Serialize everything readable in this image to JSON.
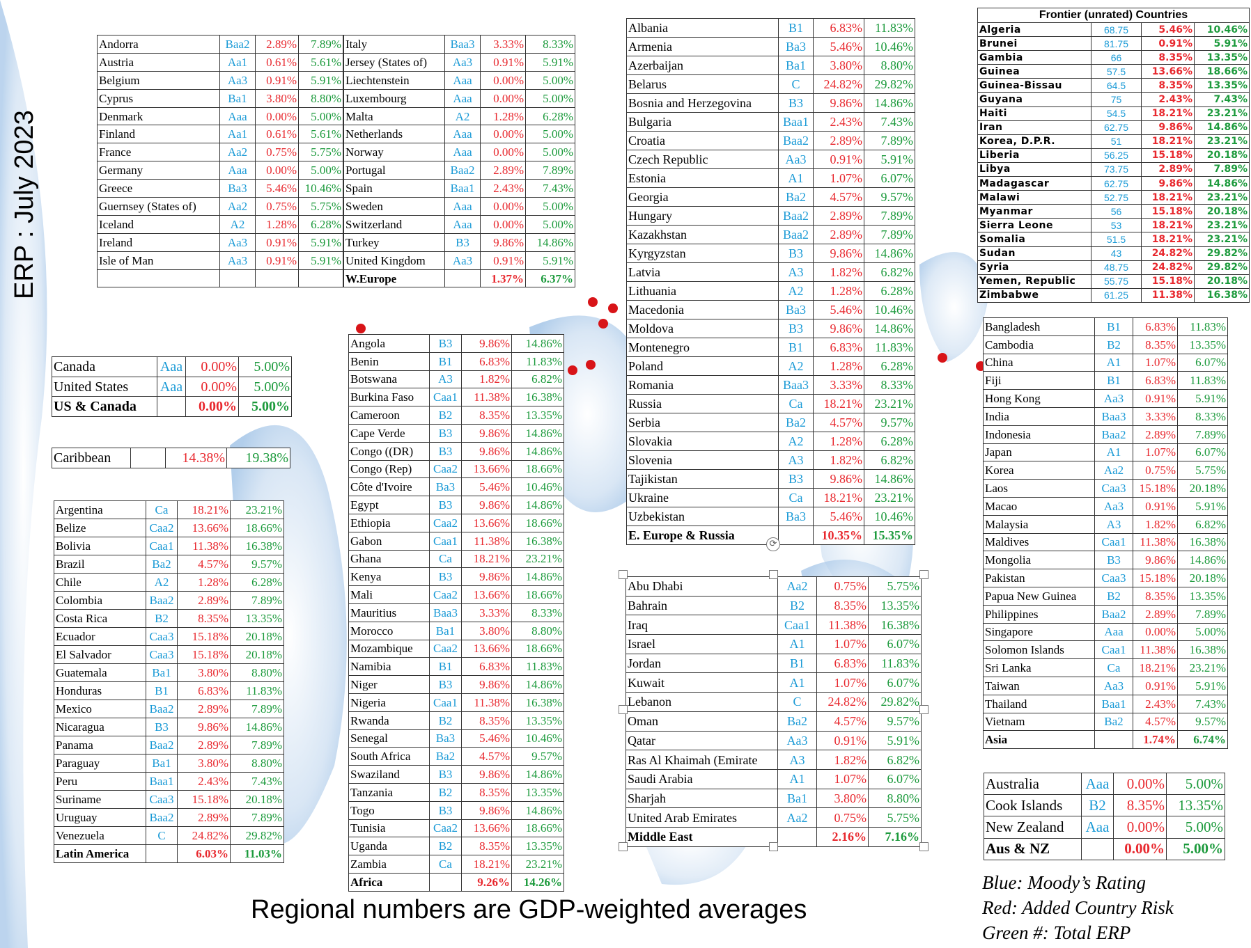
{
  "title": "ERP : July 2023",
  "footer": "Regional numbers are GDP-weighted averages",
  "legend": [
    "Blue: Moody’s Rating",
    "Red: Added Country Risk",
    "Green #: Total ERP"
  ],
  "colors": {
    "rating": "#1a9ad6",
    "crp": "#e8282e",
    "erp": "#1c9a3c",
    "ocean": "#bcd6ee",
    "marker": "#d81418"
  },
  "tables": [
    {
      "id": "weurope-left",
      "rows": [
        [
          "Andorra",
          "Baa2",
          "2.89%",
          "7.89%"
        ],
        [
          "Austria",
          "Aa1",
          "0.61%",
          "5.61%"
        ],
        [
          "Belgium",
          "Aa3",
          "0.91%",
          "5.91%"
        ],
        [
          "Cyprus",
          "Ba1",
          "3.80%",
          "8.80%"
        ],
        [
          "Denmark",
          "Aaa",
          "0.00%",
          "5.00%"
        ],
        [
          "Finland",
          "Aa1",
          "0.61%",
          "5.61%"
        ],
        [
          "France",
          "Aa2",
          "0.75%",
          "5.75%"
        ],
        [
          "Germany",
          "Aaa",
          "0.00%",
          "5.00%"
        ],
        [
          "Greece",
          "Ba3",
          "5.46%",
          "10.46%"
        ],
        [
          "Guernsey (States of)",
          "Aa2",
          "0.75%",
          "5.75%"
        ],
        [
          "Iceland",
          "A2",
          "1.28%",
          "6.28%"
        ],
        [
          "Ireland",
          "Aa3",
          "0.91%",
          "5.91%"
        ],
        [
          "Isle of Man",
          "Aa3",
          "0.91%",
          "5.91%"
        ],
        [
          "",
          "",
          "",
          ""
        ]
      ]
    },
    {
      "id": "weurope-right",
      "rows": [
        [
          "Italy",
          "Baa3",
          "3.33%",
          "8.33%"
        ],
        [
          "Jersey (States of)",
          "Aa3",
          "0.91%",
          "5.91%"
        ],
        [
          "Liechtenstein",
          "Aaa",
          "0.00%",
          "5.00%"
        ],
        [
          "Luxembourg",
          "Aaa",
          "0.00%",
          "5.00%"
        ],
        [
          "Malta",
          "A2",
          "1.28%",
          "6.28%"
        ],
        [
          "Netherlands",
          "Aaa",
          "0.00%",
          "5.00%"
        ],
        [
          "Norway",
          "Aaa",
          "0.00%",
          "5.00%"
        ],
        [
          "Portugal",
          "Baa2",
          "2.89%",
          "7.89%"
        ],
        [
          "Spain",
          "Baa1",
          "2.43%",
          "7.43%"
        ],
        [
          "Sweden",
          "Aaa",
          "0.00%",
          "5.00%"
        ],
        [
          "Switzerland",
          "Aaa",
          "0.00%",
          "5.00%"
        ],
        [
          "Turkey",
          "B3",
          "9.86%",
          "14.86%"
        ],
        [
          "United Kingdom",
          "Aa3",
          "0.91%",
          "5.91%"
        ]
      ],
      "total": [
        "W.Europe",
        "",
        "1.37%",
        "6.37%"
      ]
    },
    {
      "id": "us-canada",
      "rows": [
        [
          "Canada",
          "Aaa",
          "0.00%",
          "5.00%"
        ],
        [
          "United States",
          "Aaa",
          "0.00%",
          "5.00%"
        ]
      ],
      "total": [
        "US & Canada",
        "",
        "0.00%",
        "5.00%"
      ]
    },
    {
      "id": "caribbean",
      "rows": [
        [
          "Caribbean",
          "",
          "14.38%",
          "19.38%"
        ]
      ]
    },
    {
      "id": "latin-america",
      "rows": [
        [
          "Argentina",
          "Ca",
          "18.21%",
          "23.21%"
        ],
        [
          "Belize",
          "Caa2",
          "13.66%",
          "18.66%"
        ],
        [
          "Bolivia",
          "Caa1",
          "11.38%",
          "16.38%"
        ],
        [
          "Brazil",
          "Ba2",
          "4.57%",
          "9.57%"
        ],
        [
          "Chile",
          "A2",
          "1.28%",
          "6.28%"
        ],
        [
          "Colombia",
          "Baa2",
          "2.89%",
          "7.89%"
        ],
        [
          "Costa Rica",
          "B2",
          "8.35%",
          "13.35%"
        ],
        [
          "Ecuador",
          "Caa3",
          "15.18%",
          "20.18%"
        ],
        [
          "El Salvador",
          "Caa3",
          "15.18%",
          "20.18%"
        ],
        [
          "Guatemala",
          "Ba1",
          "3.80%",
          "8.80%"
        ],
        [
          "Honduras",
          "B1",
          "6.83%",
          "11.83%"
        ],
        [
          "Mexico",
          "Baa2",
          "2.89%",
          "7.89%"
        ],
        [
          "Nicaragua",
          "B3",
          "9.86%",
          "14.86%"
        ],
        [
          "Panama",
          "Baa2",
          "2.89%",
          "7.89%"
        ],
        [
          "Paraguay",
          "Ba1",
          "3.80%",
          "8.80%"
        ],
        [
          "Peru",
          "Baa1",
          "2.43%",
          "7.43%"
        ],
        [
          "Suriname",
          "Caa3",
          "15.18%",
          "20.18%"
        ],
        [
          "Uruguay",
          "Baa2",
          "2.89%",
          "7.89%"
        ],
        [
          "Venezuela",
          "C",
          "24.82%",
          "29.82%"
        ]
      ],
      "total": [
        "Latin America",
        "",
        "6.03%",
        "11.03%"
      ]
    },
    {
      "id": "africa",
      "rows": [
        [
          "Angola",
          "B3",
          "9.86%",
          "14.86%"
        ],
        [
          "Benin",
          "B1",
          "6.83%",
          "11.83%"
        ],
        [
          "Botswana",
          "A3",
          "1.82%",
          "6.82%"
        ],
        [
          "Burkina Faso",
          "Caa1",
          "11.38%",
          "16.38%"
        ],
        [
          "Cameroon",
          "B2",
          "8.35%",
          "13.35%"
        ],
        [
          "Cape Verde",
          "B3",
          "9.86%",
          "14.86%"
        ],
        [
          "Congo ((DR)",
          "B3",
          "9.86%",
          "14.86%"
        ],
        [
          "Congo (Rep)",
          "Caa2",
          "13.66%",
          "18.66%"
        ],
        [
          "Côte d'Ivoire",
          "Ba3",
          "5.46%",
          "10.46%"
        ],
        [
          "Egypt",
          "B3",
          "9.86%",
          "14.86%"
        ],
        [
          "Ethiopia",
          "Caa2",
          "13.66%",
          "18.66%"
        ],
        [
          "Gabon",
          "Caa1",
          "11.38%",
          "16.38%"
        ],
        [
          "Ghana",
          "Ca",
          "18.21%",
          "23.21%"
        ],
        [
          "Kenya",
          "B3",
          "9.86%",
          "14.86%"
        ],
        [
          "Mali",
          "Caa2",
          "13.66%",
          "18.66%"
        ],
        [
          "Mauritius",
          "Baa3",
          "3.33%",
          "8.33%"
        ],
        [
          "Morocco",
          "Ba1",
          "3.80%",
          "8.80%"
        ],
        [
          "Mozambique",
          "Caa2",
          "13.66%",
          "18.66%"
        ],
        [
          "Namibia",
          "B1",
          "6.83%",
          "11.83%"
        ],
        [
          "Niger",
          "B3",
          "9.86%",
          "14.86%"
        ],
        [
          "Nigeria",
          "Caa1",
          "11.38%",
          "16.38%"
        ],
        [
          "Rwanda",
          "B2",
          "8.35%",
          "13.35%"
        ],
        [
          "Senegal",
          "Ba3",
          "5.46%",
          "10.46%"
        ],
        [
          "South Africa",
          "Ba2",
          "4.57%",
          "9.57%"
        ],
        [
          "Swaziland",
          "B3",
          "9.86%",
          "14.86%"
        ],
        [
          "Tanzania",
          "B2",
          "8.35%",
          "13.35%"
        ],
        [
          "Togo",
          "B3",
          "9.86%",
          "14.86%"
        ],
        [
          "Tunisia",
          "Caa2",
          "13.66%",
          "18.66%"
        ],
        [
          "Uganda",
          "B2",
          "8.35%",
          "13.35%"
        ],
        [
          "Zambia",
          "Ca",
          "18.21%",
          "23.21%"
        ]
      ],
      "total": [
        "Africa",
        "",
        "9.26%",
        "14.26%"
      ]
    },
    {
      "id": "eeurope-russia",
      "rows": [
        [
          "Albania",
          "B1",
          "6.83%",
          "11.83%"
        ],
        [
          "Armenia",
          "Ba3",
          "5.46%",
          "10.46%"
        ],
        [
          "Azerbaijan",
          "Ba1",
          "3.80%",
          "8.80%"
        ],
        [
          "Belarus",
          "C",
          "24.82%",
          "29.82%"
        ],
        [
          "Bosnia and Herzegovina",
          "B3",
          "9.86%",
          "14.86%"
        ],
        [
          "Bulgaria",
          "Baa1",
          "2.43%",
          "7.43%"
        ],
        [
          "Croatia",
          "Baa2",
          "2.89%",
          "7.89%"
        ],
        [
          "Czech Republic",
          "Aa3",
          "0.91%",
          "5.91%"
        ],
        [
          "Estonia",
          "A1",
          "1.07%",
          "6.07%"
        ],
        [
          "Georgia",
          "Ba2",
          "4.57%",
          "9.57%"
        ],
        [
          "Hungary",
          "Baa2",
          "2.89%",
          "7.89%"
        ],
        [
          "Kazakhstan",
          "Baa2",
          "2.89%",
          "7.89%"
        ],
        [
          "Kyrgyzstan",
          "B3",
          "9.86%",
          "14.86%"
        ],
        [
          "Latvia",
          "A3",
          "1.82%",
          "6.82%"
        ],
        [
          "Lithuania",
          "A2",
          "1.28%",
          "6.28%"
        ],
        [
          "Macedonia",
          "Ba3",
          "5.46%",
          "10.46%"
        ],
        [
          "Moldova",
          "B3",
          "9.86%",
          "14.86%"
        ],
        [
          "Montenegro",
          "B1",
          "6.83%",
          "11.83%"
        ],
        [
          "Poland",
          "A2",
          "1.28%",
          "6.28%"
        ],
        [
          "Romania",
          "Baa3",
          "3.33%",
          "8.33%"
        ],
        [
          "Russia",
          "Ca",
          "18.21%",
          "23.21%"
        ],
        [
          "Serbia",
          "Ba2",
          "4.57%",
          "9.57%"
        ],
        [
          "Slovakia",
          "A2",
          "1.28%",
          "6.28%"
        ],
        [
          "Slovenia",
          "A3",
          "1.82%",
          "6.82%"
        ],
        [
          "Tajikistan",
          "B3",
          "9.86%",
          "14.86%"
        ],
        [
          "Ukraine",
          "Ca",
          "18.21%",
          "23.21%"
        ],
        [
          "Uzbekistan",
          "Ba3",
          "5.46%",
          "10.46%"
        ]
      ],
      "total": [
        "E. Europe & Russia",
        "",
        "10.35%",
        "15.35%"
      ]
    },
    {
      "id": "middle-east",
      "rows": [
        [
          "Abu Dhabi",
          "Aa2",
          "0.75%",
          "5.75%"
        ],
        [
          "Bahrain",
          "B2",
          "8.35%",
          "13.35%"
        ],
        [
          "Iraq",
          "Caa1",
          "11.38%",
          "16.38%"
        ],
        [
          "Israel",
          "A1",
          "1.07%",
          "6.07%"
        ],
        [
          "Jordan",
          "B1",
          "6.83%",
          "11.83%"
        ],
        [
          "Kuwait",
          "A1",
          "1.07%",
          "6.07%"
        ],
        [
          "Lebanon",
          "C",
          "24.82%",
          "29.82%"
        ],
        [
          "Oman",
          "Ba2",
          "4.57%",
          "9.57%"
        ],
        [
          "Qatar",
          "Aa3",
          "0.91%",
          "5.91%"
        ],
        [
          "Ras Al Khaimah (Emirate",
          "A3",
          "1.82%",
          "6.82%"
        ],
        [
          "Saudi Arabia",
          "A1",
          "1.07%",
          "6.07%"
        ],
        [
          "Sharjah",
          "Ba1",
          "3.80%",
          "8.80%"
        ],
        [
          "United Arab Emirates",
          "Aa2",
          "0.75%",
          "5.75%"
        ]
      ],
      "total": [
        "Middle East",
        "",
        "2.16%",
        "7.16%"
      ]
    },
    {
      "id": "frontier",
      "title": "Frontier (unrated) Countries",
      "rows": [
        [
          "Algeria",
          "68.75",
          "5.46%",
          "10.46%"
        ],
        [
          "Brunei",
          "81.75",
          "0.91%",
          "5.91%"
        ],
        [
          "Gambia",
          "66",
          "8.35%",
          "13.35%"
        ],
        [
          "Guinea",
          "57.5",
          "13.66%",
          "18.66%"
        ],
        [
          "Guinea-Bissau",
          "64.5",
          "8.35%",
          "13.35%"
        ],
        [
          "Guyana",
          "75",
          "2.43%",
          "7.43%"
        ],
        [
          "Haiti",
          "54.5",
          "18.21%",
          "23.21%"
        ],
        [
          "Iran",
          "62.75",
          "9.86%",
          "14.86%"
        ],
        [
          "Korea, D.P.R.",
          "51",
          "18.21%",
          "23.21%"
        ],
        [
          "Liberia",
          "56.25",
          "15.18%",
          "20.18%"
        ],
        [
          "Libya",
          "73.75",
          "2.89%",
          "7.89%"
        ],
        [
          "Madagascar",
          "62.75",
          "9.86%",
          "14.86%"
        ],
        [
          "Malawi",
          "52.75",
          "18.21%",
          "23.21%"
        ],
        [
          "Myanmar",
          "56",
          "15.18%",
          "20.18%"
        ],
        [
          "Sierra Leone",
          "53",
          "18.21%",
          "23.21%"
        ],
        [
          "Somalia",
          "51.5",
          "18.21%",
          "23.21%"
        ],
        [
          "Sudan",
          "43",
          "24.82%",
          "29.82%"
        ],
        [
          "Syria",
          "48.75",
          "24.82%",
          "29.82%"
        ],
        [
          "Yemen, Republic",
          "55.75",
          "15.18%",
          "20.18%"
        ],
        [
          "Zimbabwe",
          "61.25",
          "11.38%",
          "16.38%"
        ]
      ]
    },
    {
      "id": "asia",
      "rows": [
        [
          "Bangladesh",
          "B1",
          "6.83%",
          "11.83%"
        ],
        [
          "Cambodia",
          "B2",
          "8.35%",
          "13.35%"
        ],
        [
          "China",
          "A1",
          "1.07%",
          "6.07%"
        ],
        [
          "Fiji",
          "B1",
          "6.83%",
          "11.83%"
        ],
        [
          "Hong Kong",
          "Aa3",
          "0.91%",
          "5.91%"
        ],
        [
          "India",
          "Baa3",
          "3.33%",
          "8.33%"
        ],
        [
          "Indonesia",
          "Baa2",
          "2.89%",
          "7.89%"
        ],
        [
          "Japan",
          "A1",
          "1.07%",
          "6.07%"
        ],
        [
          "Korea",
          "Aa2",
          "0.75%",
          "5.75%"
        ],
        [
          "Laos",
          "Caa3",
          "15.18%",
          "20.18%"
        ],
        [
          "Macao",
          "Aa3",
          "0.91%",
          "5.91%"
        ],
        [
          "Malaysia",
          "A3",
          "1.82%",
          "6.82%"
        ],
        [
          "Maldives",
          "Caa1",
          "11.38%",
          "16.38%"
        ],
        [
          "Mongolia",
          "B3",
          "9.86%",
          "14.86%"
        ],
        [
          "Pakistan",
          "Caa3",
          "15.18%",
          "20.18%"
        ],
        [
          "Papua New Guinea",
          "B2",
          "8.35%",
          "13.35%"
        ],
        [
          "Philippines",
          "Baa2",
          "2.89%",
          "7.89%"
        ],
        [
          "Singapore",
          "Aaa",
          "0.00%",
          "5.00%"
        ],
        [
          "Solomon Islands",
          "Caa1",
          "11.38%",
          "16.38%"
        ],
        [
          "Sri Lanka",
          "Ca",
          "18.21%",
          "23.21%"
        ],
        [
          "Taiwan",
          "Aa3",
          "0.91%",
          "5.91%"
        ],
        [
          "Thailand",
          "Baa1",
          "2.43%",
          "7.43%"
        ],
        [
          "Vietnam",
          "Ba2",
          "4.57%",
          "9.57%"
        ]
      ],
      "total": [
        "Asia",
        "",
        "1.74%",
        "6.74%"
      ]
    },
    {
      "id": "aus-nz",
      "rows": [
        [
          "Australia",
          "Aaa",
          "0.00%",
          "5.00%"
        ],
        [
          "Cook Islands",
          "B2",
          "8.35%",
          "13.35%"
        ],
        [
          "New Zealand",
          "Aaa",
          "0.00%",
          "5.00%"
        ]
      ],
      "total": [
        "Aus & NZ",
        "",
        "0.00%",
        "5.00%"
      ]
    }
  ]
}
